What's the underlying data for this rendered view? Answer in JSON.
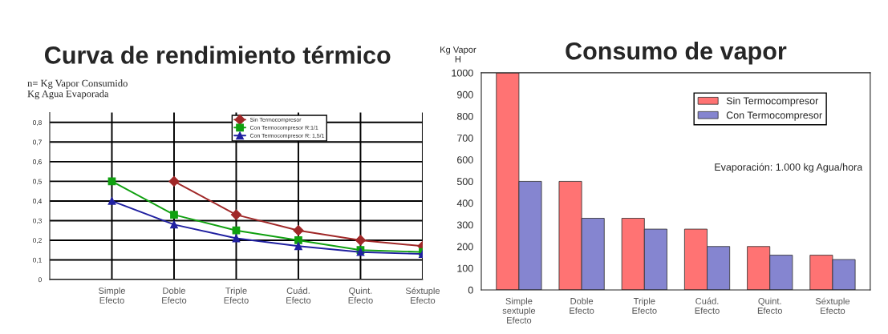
{
  "chart_data": [
    {
      "type": "line",
      "title": "Curva de rendimiento térmico",
      "ylabel": "n= Kg Vapor Consumido\nKg Agua Evaporada",
      "categories": [
        "Simple\nEfecto",
        "Doble\nEfecto",
        "Triple\nEfecto",
        "Cuád.\nEfecto",
        "Quint.\nEfecto",
        "Séxtuple\nEfecto"
      ],
      "series": [
        {
          "name": "Sin Termocompresor",
          "color": "#a02828",
          "marker": "diamond",
          "values": [
            null,
            0.5,
            0.33,
            0.25,
            0.2,
            0.17
          ]
        },
        {
          "name": "Con Termocompresor R:1/1",
          "color": "#10a010",
          "marker": "square",
          "values": [
            0.5,
            0.33,
            0.25,
            0.2,
            0.15,
            0.14
          ]
        },
        {
          "name": "Con Termocompresor R: 1,5/1",
          "color": "#2020a0",
          "marker": "triangle",
          "values": [
            0.4,
            0.28,
            0.21,
            0.17,
            0.14,
            0.13
          ]
        }
      ],
      "ylim": [
        0,
        0.85
      ],
      "yticks": [
        {
          "value": 0,
          "label": "0"
        },
        {
          "value": 0.1,
          "label": "0,1"
        },
        {
          "value": 0.2,
          "label": "0,2"
        },
        {
          "value": 0.3,
          "label": "0,3"
        },
        {
          "value": 0.4,
          "label": "0,4"
        },
        {
          "value": 0.5,
          "label": "0,5"
        },
        {
          "value": 0.6,
          "label": "0,6"
        },
        {
          "value": 0.7,
          "label": "0,7"
        },
        {
          "value": 0.8,
          "label": "0,8"
        }
      ],
      "grid": true,
      "legend": "top right",
      "line_style": "solid"
    },
    {
      "type": "bar",
      "title": "Consumo de vapor",
      "ylabel": "Kg Vapor\nH",
      "categories": [
        "Simple\nsextuple\nEfecto",
        "Doble\nEfecto",
        "Triple\nEfecto",
        "Cuád.\nEfecto",
        "Quint.\nEfecto",
        "Séxtuple\nEfecto"
      ],
      "series": [
        {
          "name": "Sin Termocompresor",
          "color": "#ff7373",
          "values": [
            1000,
            500,
            330,
            280,
            200,
            160
          ]
        },
        {
          "name": "Con Termocompresor",
          "color": "#8585d0",
          "values": [
            500,
            330,
            280,
            200,
            160,
            140
          ]
        }
      ],
      "ylim": [
        0,
        1000
      ],
      "yticks": [
        0,
        100,
        200,
        300,
        400,
        500,
        600,
        700,
        800,
        900,
        1000
      ],
      "annotations": [
        "Evaporación: 1.000 kg Agua/hora"
      ],
      "grid": false,
      "legend": "top right"
    }
  ]
}
